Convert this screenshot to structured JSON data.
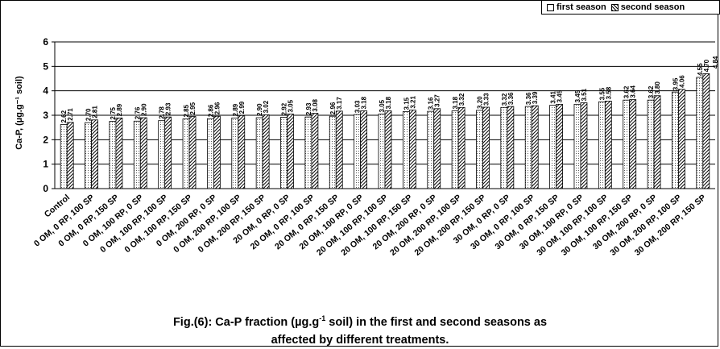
{
  "chart_data": {
    "type": "bar",
    "ylabel": "Ca-P, (µg.g⁻¹ soil)",
    "ylim": [
      0,
      6
    ],
    "yticks": [
      0,
      1,
      2,
      3,
      4,
      5,
      6
    ],
    "grid": true,
    "legend_position": "top-right",
    "categories": [
      "Control",
      "0 OM, 0 RP, 100 SP",
      "0 OM, 0 RP, 150 SP",
      "0 OM, 100 RP, 0 SP",
      "0 OM, 100 RP, 100 SP",
      "0 OM, 100 RP, 150 SP",
      "0 OM, 200 RP, 0 SP",
      "0 OM, 200 RP, 100 SP",
      "0 OM, 200 RP, 150 SP",
      "20 OM, 0 RP, 0 SP",
      "20 OM, 0 RP, 100 SP",
      "20 OM, 0 RP, 150 SP",
      "20 OM, 100 RP, 0 SP",
      "20 OM, 100 RP, 100 SP",
      "20 OM, 100 RP, 150 SP",
      "20 OM, 200 RP, 0 SP",
      "20 OM, 200 RP, 100 SP",
      "20 OM, 200 RP, 150 SP",
      "30 OM, 0 RP, 0 SP",
      "30 OM, 0 RP, 100 SP",
      "30 OM, 0 RP, 150 SP",
      "30 OM, 100 RP, 0 SP",
      "30 OM, 100 RP, 100 SP",
      "30 OM, 100 RP, 150 SP",
      "30 OM, 200 RP, 0 SP",
      "30 OM, 200 RP, 100 SP",
      "30 OM, 200 RP, 150 SP"
    ],
    "series": [
      {
        "name": "first season",
        "values": [
          2.62,
          2.7,
          2.75,
          2.76,
          2.78,
          2.85,
          2.86,
          2.89,
          2.9,
          2.92,
          2.93,
          2.96,
          3.03,
          3.05,
          3.15,
          3.16,
          3.18,
          3.2,
          3.32,
          3.36,
          3.41,
          3.45,
          3.55,
          3.62,
          3.62,
          3.95,
          4.55
        ],
        "labels": [
          "2.62",
          "2.70",
          "2.75",
          "2.76",
          "2.78",
          "2.85",
          "2.86",
          "2.89",
          "2.90",
          "2.92",
          "2.93",
          "2.96",
          "3.03",
          "3.05",
          "3.15",
          "3.16",
          "3.18",
          "3.20",
          "3.32",
          "3.36",
          "3.41",
          "3.45",
          "3.55",
          "3.62",
          "3.62",
          "3.95",
          "4.55"
        ]
      },
      {
        "name": "second season",
        "values": [
          2.71,
          2.81,
          2.89,
          2.9,
          2.93,
          2.95,
          2.96,
          2.99,
          3.02,
          3.05,
          3.08,
          3.17,
          3.18,
          3.18,
          3.21,
          3.27,
          3.32,
          3.33,
          3.36,
          3.39,
          3.45,
          3.51,
          3.58,
          3.64,
          3.8,
          4.06,
          4.7
        ],
        "labels": [
          "2.71",
          "2.81",
          "2.89",
          "2.90",
          "2.93",
          "2.95",
          "2.96",
          "2.99",
          "3.02",
          "3.05",
          "3.08",
          "3.17",
          "3.18",
          "3.18",
          "3.21",
          "3.27",
          "3.32",
          "3.33",
          "3.36",
          "3.39",
          "3.45",
          "3.51",
          "3.58",
          "3.64",
          "3.80",
          "4.06",
          "4.70"
        ]
      }
    ],
    "extra_top_label": "4.84"
  },
  "legend": {
    "first": "first season",
    "second": "second season"
  },
  "caption": {
    "line1_pre": "Fig.(6):  Ca-P fraction (µg.g",
    "line1_sup": "-1",
    "line1_post": " soil) in the first and second seasons as",
    "line2": "affected by different treatments."
  },
  "colors": {
    "axis": "#000000",
    "bar_fill": "#ffffff",
    "hatch": "#000000"
  }
}
